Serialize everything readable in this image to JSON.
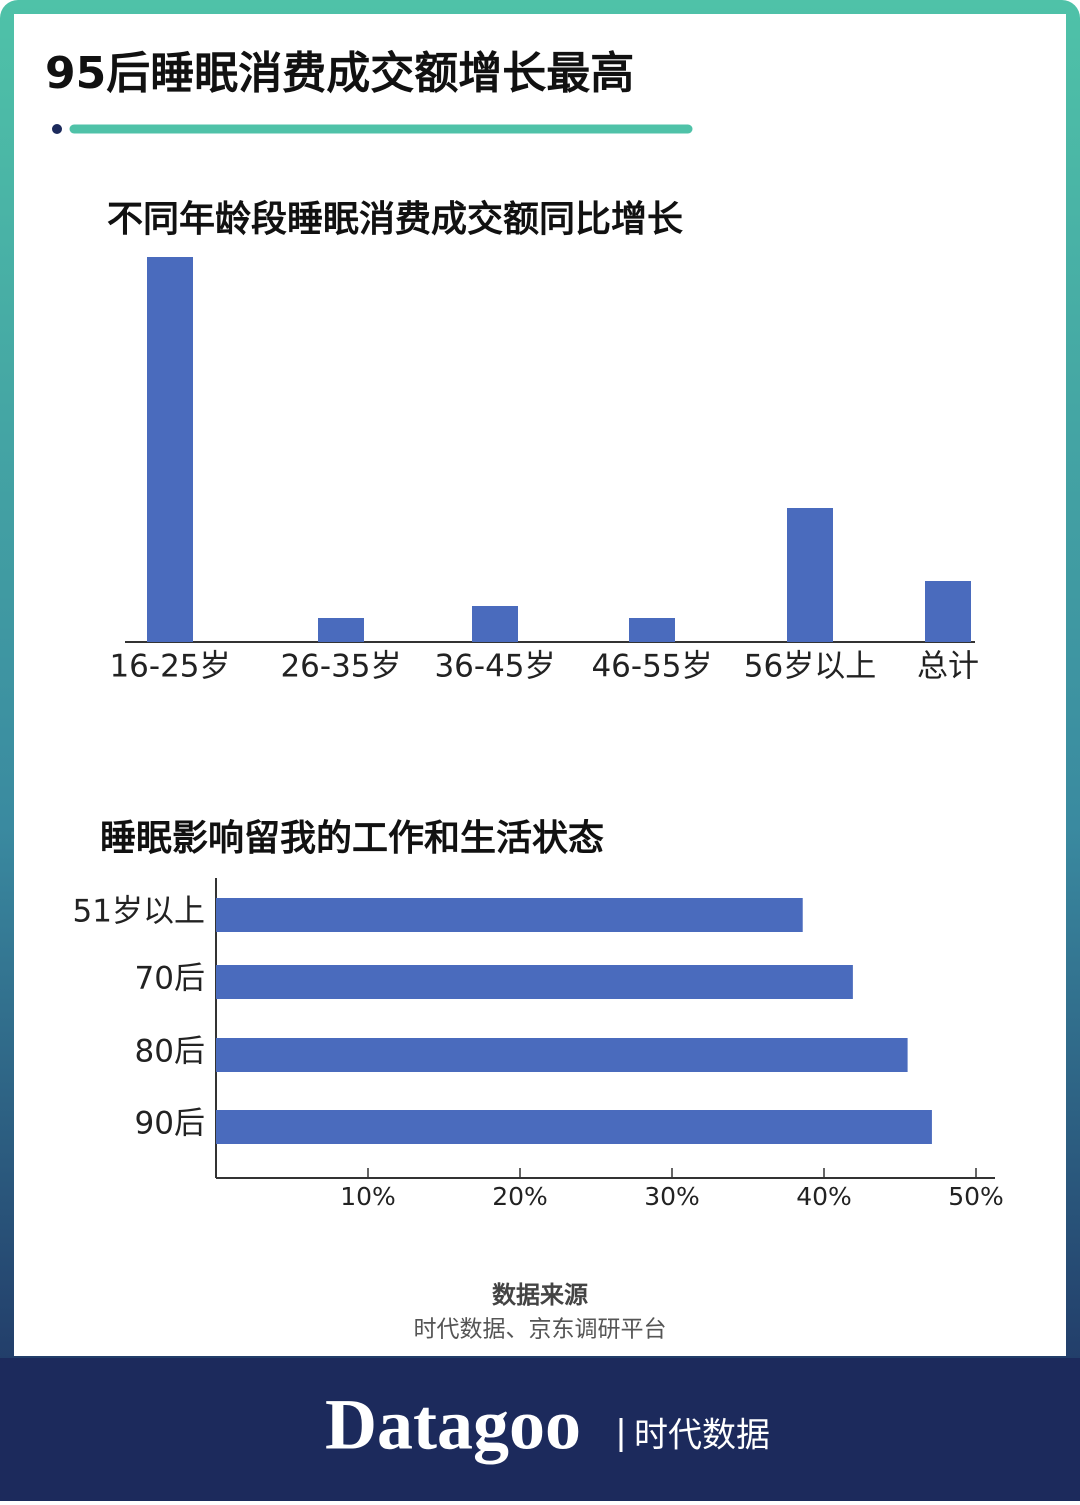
{
  "header": {
    "title": "95后睡眠消费成交额增长最高"
  },
  "chart_data": [
    {
      "type": "bar",
      "title": "不同年龄段睡眠消费成交额同比增长",
      "categories": [
        "16-25岁",
        "26-35岁",
        "36-45岁",
        "46-55岁",
        "56岁以上",
        "总计"
      ],
      "values": [
        385,
        24,
        36,
        24,
        134,
        61
      ],
      "color": "#4a6bbd"
    },
    {
      "type": "hbar",
      "title": "睡眠影响留我的工作和生活状态",
      "categories": [
        "51岁以上",
        "70后",
        "80后",
        "90后"
      ],
      "values": [
        38.6,
        41.9,
        45.5,
        47.1
      ],
      "color": "#4a6bbd",
      "xlim": [
        0,
        51.25
      ],
      "xticks": [
        {
          "value": 10,
          "label": "10%"
        },
        {
          "value": 20,
          "label": "20%"
        },
        {
          "value": 30,
          "label": "30%"
        },
        {
          "value": 40,
          "label": "40%"
        },
        {
          "value": 50,
          "label": "50%"
        }
      ]
    }
  ],
  "source": {
    "label": "数据来源",
    "text": "时代数据、京东调研平台"
  },
  "footer": {
    "brand": "Datagoo",
    "name": "时代数据"
  }
}
